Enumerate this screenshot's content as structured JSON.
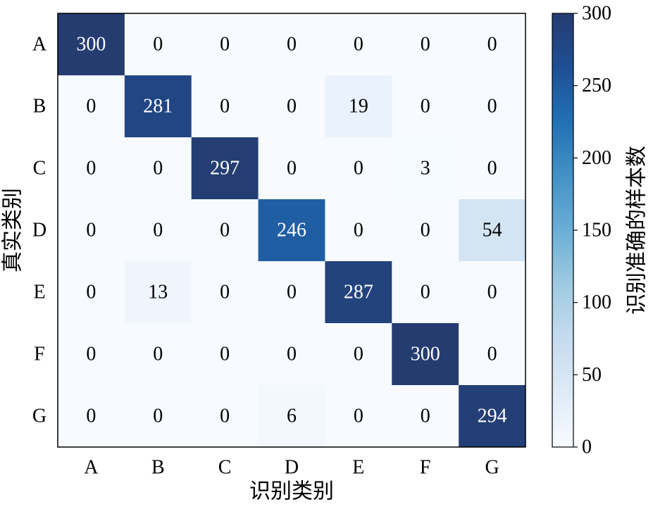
{
  "chart_data": {
    "type": "heatmap",
    "row_labels": [
      "A",
      "B",
      "C",
      "D",
      "E",
      "F",
      "G"
    ],
    "col_labels": [
      "A",
      "B",
      "C",
      "D",
      "E",
      "F",
      "G"
    ],
    "values": [
      [
        300,
        0,
        0,
        0,
        0,
        0,
        0
      ],
      [
        0,
        281,
        0,
        0,
        19,
        0,
        0
      ],
      [
        0,
        0,
        297,
        0,
        0,
        3,
        0
      ],
      [
        0,
        0,
        0,
        246,
        0,
        0,
        54
      ],
      [
        0,
        13,
        0,
        0,
        287,
        0,
        0
      ],
      [
        0,
        0,
        0,
        0,
        0,
        300,
        0
      ],
      [
        0,
        0,
        0,
        6,
        0,
        0,
        294
      ]
    ],
    "xlabel": "识别类别",
    "ylabel": "真实类别",
    "colorbar": {
      "label": "识别准确的样本数",
      "range": [
        0,
        300
      ],
      "ticks": [
        0,
        50,
        100,
        150,
        200,
        250,
        300
      ],
      "colormap": "Blues"
    }
  }
}
